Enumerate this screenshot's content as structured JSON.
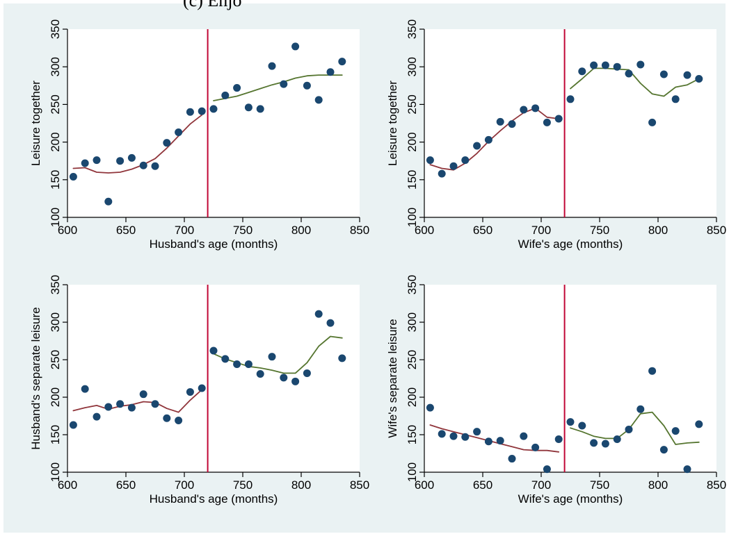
{
  "header_fragment": "(c) Enjo",
  "colors": {
    "background": "#eaf2f3",
    "point": "#1a476f",
    "fit_before": "#90353b",
    "fit_after": "#55752f",
    "cutoff_line": "#c10534"
  },
  "chart_data": [
    {
      "type": "scatter",
      "xlabel": "Husband's age (months)",
      "ylabel": "Leisure together",
      "xlim": [
        600,
        850
      ],
      "ylim": [
        100,
        350
      ],
      "xticks": [
        600,
        650,
        700,
        750,
        800,
        850
      ],
      "yticks": [
        100,
        150,
        200,
        250,
        300,
        350
      ],
      "cutoff": 720,
      "points": {
        "x": [
          605,
          615,
          625,
          635,
          645,
          655,
          665,
          675,
          685,
          695,
          705,
          715,
          725,
          735,
          745,
          755,
          765,
          775,
          785,
          795,
          805,
          815,
          825,
          835
        ],
        "y": [
          154,
          172,
          176,
          121,
          175,
          179,
          169,
          168,
          199,
          213,
          240,
          241,
          244,
          262,
          272,
          246,
          244,
          301,
          277,
          327,
          275,
          256,
          293,
          307
        ]
      },
      "fit_before": {
        "x": [
          605,
          615,
          625,
          635,
          645,
          655,
          665,
          675,
          685,
          695,
          705,
          715
        ],
        "y": [
          165,
          166,
          160,
          159,
          160,
          164,
          170,
          178,
          192,
          208,
          224,
          236
        ]
      },
      "fit_after": {
        "x": [
          725,
          735,
          745,
          755,
          765,
          775,
          785,
          795,
          805,
          815,
          825,
          835
        ],
        "y": [
          255,
          258,
          261,
          266,
          271,
          276,
          280,
          285,
          288,
          289,
          289,
          289
        ]
      }
    },
    {
      "type": "scatter",
      "xlabel": "Wife's age (months)",
      "ylabel": "Leisure together",
      "xlim": [
        600,
        850
      ],
      "ylim": [
        100,
        350
      ],
      "xticks": [
        600,
        650,
        700,
        750,
        800,
        850
      ],
      "yticks": [
        100,
        150,
        200,
        250,
        300,
        350
      ],
      "cutoff": 720,
      "points": {
        "x": [
          605,
          615,
          625,
          635,
          645,
          655,
          665,
          675,
          685,
          695,
          705,
          715,
          725,
          735,
          745,
          755,
          765,
          775,
          785,
          795,
          805,
          815,
          825,
          835
        ],
        "y": [
          176,
          158,
          168,
          176,
          195,
          203,
          227,
          224,
          243,
          245,
          226,
          231,
          257,
          294,
          302,
          302,
          300,
          291,
          303,
          226,
          290,
          257,
          289,
          284
        ]
      },
      "fit_before": {
        "x": [
          605,
          615,
          625,
          635,
          645,
          655,
          665,
          675,
          685,
          695,
          705,
          715
        ],
        "y": [
          170,
          165,
          163,
          172,
          185,
          201,
          215,
          228,
          239,
          245,
          233,
          231
        ]
      },
      "fit_after": {
        "x": [
          725,
          735,
          745,
          755,
          765,
          775,
          785,
          795,
          805,
          815,
          825,
          835
        ],
        "y": [
          271,
          284,
          298,
          298,
          297,
          296,
          278,
          264,
          261,
          273,
          276,
          284
        ]
      }
    },
    {
      "type": "scatter",
      "xlabel": "Husband's age (months)",
      "ylabel": "Husband's separate leisure",
      "xlim": [
        600,
        850
      ],
      "ylim": [
        100,
        350
      ],
      "xticks": [
        600,
        650,
        700,
        750,
        800,
        850
      ],
      "yticks": [
        100,
        150,
        200,
        250,
        300,
        350
      ],
      "cutoff": 720,
      "points": {
        "x": [
          605,
          615,
          625,
          635,
          645,
          655,
          665,
          675,
          685,
          695,
          705,
          715,
          725,
          735,
          745,
          755,
          765,
          775,
          785,
          795,
          805,
          815,
          825,
          835
        ],
        "y": [
          163,
          211,
          174,
          187,
          191,
          186,
          204,
          191,
          172,
          169,
          207,
          212,
          262,
          251,
          244,
          244,
          231,
          254,
          226,
          221,
          232,
          311,
          299,
          252
        ]
      },
      "fit_before": {
        "x": [
          605,
          615,
          625,
          635,
          645,
          655,
          665,
          675,
          685,
          695,
          705,
          715
        ],
        "y": [
          182,
          186,
          189,
          184,
          188,
          190,
          194,
          193,
          185,
          180,
          196,
          210
        ]
      },
      "fit_after": {
        "x": [
          725,
          735,
          745,
          755,
          765,
          775,
          785,
          795,
          805,
          815,
          825,
          835
        ],
        "y": [
          258,
          251,
          246,
          241,
          239,
          236,
          232,
          232,
          246,
          268,
          281,
          279
        ]
      }
    },
    {
      "type": "scatter",
      "xlabel": "Wife's age (months)",
      "ylabel": "Wife's separate leisure",
      "xlim": [
        600,
        850
      ],
      "ylim": [
        100,
        350
      ],
      "xticks": [
        600,
        650,
        700,
        750,
        800,
        850
      ],
      "yticks": [
        100,
        150,
        200,
        250,
        300,
        350
      ],
      "cutoff": 720,
      "points": {
        "x": [
          605,
          615,
          625,
          635,
          645,
          655,
          665,
          675,
          685,
          695,
          705,
          715,
          725,
          735,
          745,
          755,
          765,
          775,
          785,
          795,
          805,
          815,
          825,
          835
        ],
        "y": [
          186,
          151,
          148,
          147,
          154,
          141,
          142,
          118,
          148,
          133,
          104,
          144,
          167,
          162,
          139,
          138,
          144,
          157,
          184,
          235,
          130,
          155,
          104,
          164
        ]
      },
      "fit_before": {
        "x": [
          605,
          615,
          625,
          635,
          645,
          655,
          665,
          675,
          685,
          695,
          705,
          715
        ],
        "y": [
          163,
          158,
          154,
          150,
          146,
          142,
          138,
          134,
          130,
          129,
          129,
          127
        ]
      },
      "fit_after": {
        "x": [
          725,
          735,
          745,
          755,
          765,
          775,
          785,
          795,
          805,
          815,
          825,
          835
        ],
        "y": [
          159,
          154,
          148,
          145,
          145,
          157,
          178,
          180,
          162,
          137,
          139,
          140
        ]
      }
    }
  ]
}
